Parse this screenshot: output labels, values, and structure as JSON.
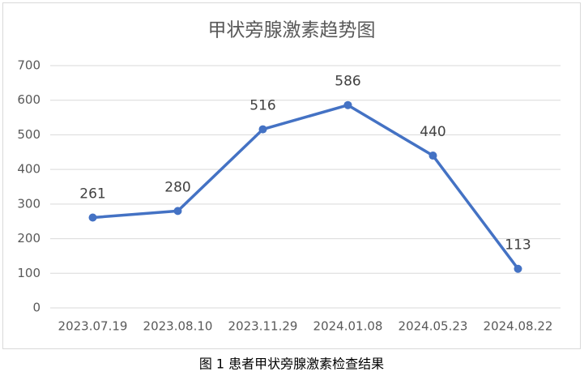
{
  "chart_data": {
    "type": "line",
    "title": "甲状旁腺激素趋势图",
    "caption": "图 1 患者甲状旁腺激素检查结果",
    "categories": [
      "2023.07.19",
      "2023.08.10",
      "2023.11.29",
      "2024.01.08",
      "2024.05.23",
      "2024.08.22"
    ],
    "values": [
      261,
      280,
      516,
      586,
      440,
      113
    ],
    "color": "#4472c4",
    "ylim": [
      0,
      700
    ],
    "yticks": [
      0,
      100,
      200,
      300,
      400,
      500,
      600,
      700
    ],
    "grid": true
  }
}
